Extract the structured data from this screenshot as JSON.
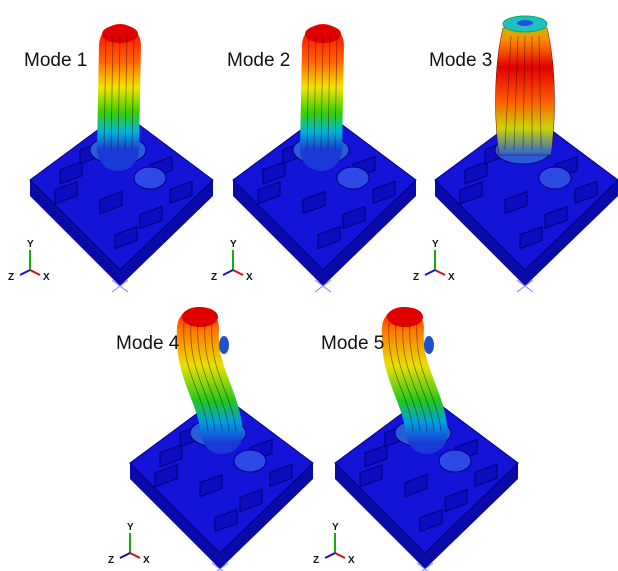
{
  "panels": [
    {
      "label": "Mode 1",
      "triad": {
        "y": "Y",
        "z": "Z",
        "x": "X"
      }
    },
    {
      "label": "Mode 2",
      "triad": {
        "y": "Y",
        "z": "Z",
        "x": "X"
      }
    },
    {
      "label": "Mode 3",
      "triad": {
        "y": "Y",
        "z": "Z",
        "x": "X"
      }
    },
    {
      "label": "Mode 4",
      "triad": {
        "y": "Y",
        "z": "Z",
        "x": "X"
      }
    },
    {
      "label": "Mode 5",
      "triad": {
        "y": "Y",
        "z": "Z",
        "x": "X"
      }
    }
  ]
}
